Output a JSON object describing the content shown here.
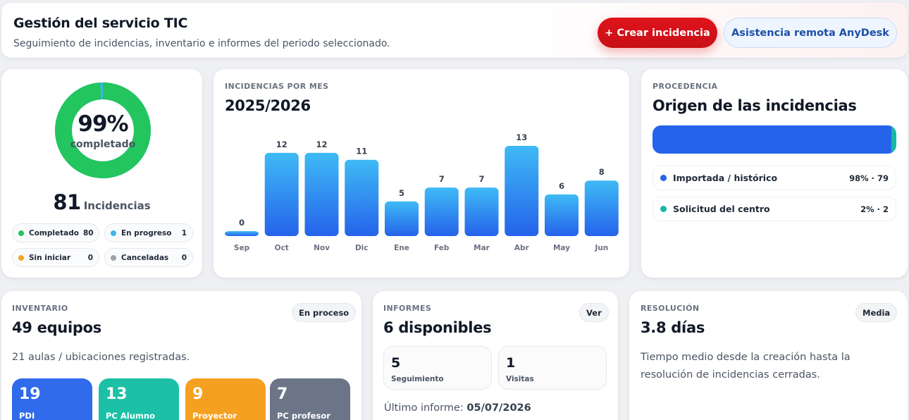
{
  "header": {
    "title": "Gestión del servicio TIC",
    "subtitle": "Seguimiento de incidencias, inventario e informes del periodo seleccionado.",
    "create_button": "+ Crear incidencia",
    "remote_button": "Asistencia remota AnyDesk"
  },
  "progress": {
    "percent_label": "99%",
    "percent_value": 0.99,
    "caption": "completado",
    "total": "81",
    "total_label": "Incidencias",
    "statuses": [
      {
        "label": "Completado",
        "value": "80",
        "color": "#22c55e"
      },
      {
        "label": "En progreso",
        "value": "1",
        "color": "#3db4ec"
      },
      {
        "label": "Sin iniciar",
        "value": "0",
        "color": "#f5a623"
      },
      {
        "label": "Canceladas",
        "value": "0",
        "color": "#9ca3af"
      }
    ]
  },
  "incidents_chart": {
    "eyebrow": "INCIDENCIAS POR MES",
    "title": "2025/2026"
  },
  "chart_data": {
    "type": "bar",
    "categories": [
      "Sep",
      "Oct",
      "Nov",
      "Dic",
      "Ene",
      "Feb",
      "Mar",
      "Abr",
      "May",
      "Jun"
    ],
    "values": [
      0,
      12,
      12,
      11,
      5,
      7,
      7,
      13,
      6,
      8
    ],
    "title": "2025/2026",
    "xlabel": "",
    "ylabel": "",
    "ylim": [
      0,
      13
    ],
    "grid": false,
    "colors": {
      "top": "#3fbaf5",
      "bottom": "#2563eb"
    }
  },
  "origin": {
    "eyebrow": "PROCEDENCIA",
    "title": "Origen de las incidencias",
    "items": [
      {
        "label": "Importada / histórico",
        "value": "98% · 79",
        "share": 0.98,
        "color": "#2563eb"
      },
      {
        "label": "Solicitud del centro",
        "value": "2% · 2",
        "share": 0.02,
        "color": "#14b8a6"
      }
    ]
  },
  "inventory": {
    "eyebrow": "INVENTARIO",
    "title": "49 equipos",
    "tag": "En proceso",
    "description": "21 aulas / ubicaciones registradas.",
    "tiles": [
      {
        "value": "19",
        "label": "PDI",
        "color": "#2f6bea"
      },
      {
        "value": "13",
        "label": "PC Alumno",
        "color": "#1cc0a6"
      },
      {
        "value": "9",
        "label": "Proyector",
        "color": "#f5a020"
      },
      {
        "value": "7",
        "label": "PC profesor",
        "color": "#6b7587"
      }
    ]
  },
  "reports": {
    "eyebrow": "INFORMES",
    "title": "6 disponibles",
    "tag": "Ver",
    "stats": [
      {
        "value": "5",
        "label": "Seguimiento"
      },
      {
        "value": "1",
        "label": "Visitas"
      }
    ],
    "last_label": "Último informe:",
    "last_value": "05/07/2026"
  },
  "resolution": {
    "eyebrow": "RESOLUCIÓN",
    "title": "3.8 días",
    "tag": "Media",
    "description_line1": "Tiempo medio desde la creación hasta la",
    "description_line2": "resolución de incidencias cerradas."
  }
}
